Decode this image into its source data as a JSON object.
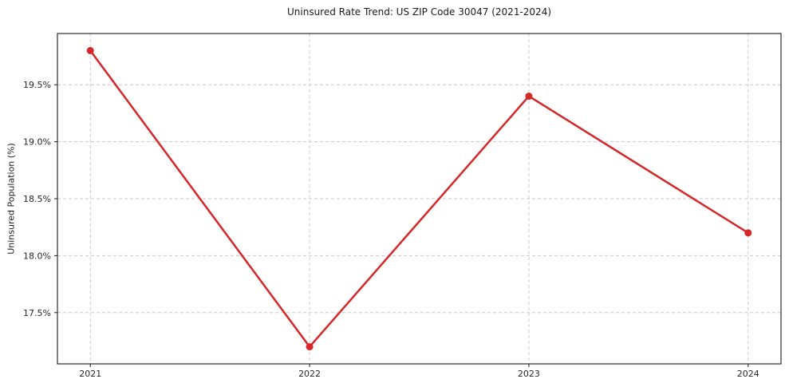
{
  "chart_data": {
    "type": "line",
    "title": "Uninsured Rate Trend: US ZIP Code 30047 (2021-2024)",
    "xlabel": "",
    "ylabel": "Uninsured Population (%)",
    "x": [
      2021,
      2022,
      2023,
      2024
    ],
    "values": [
      19.8,
      17.2,
      19.4,
      18.2
    ],
    "xticks": [
      2021,
      2022,
      2023,
      2024
    ],
    "xtick_labels": [
      "2021",
      "2022",
      "2023",
      "2024"
    ],
    "yticks": [
      17.5,
      18.0,
      18.5,
      19.0,
      19.5
    ],
    "ytick_labels": [
      "17.5%",
      "18.0%",
      "18.5%",
      "19.0%",
      "19.5%"
    ],
    "xlim": [
      2020.85,
      2024.15
    ],
    "ylim": [
      17.05,
      19.95
    ],
    "grid": true,
    "grid_style": "dashed",
    "legend_position": "none",
    "line_color": "#d62728",
    "marker": "circle",
    "marker_radius": 4.5,
    "line_width": 2.5,
    "grid_color": "#c9c9c9",
    "axis_color": "#1a1a1a",
    "tick_label_color": "#262626",
    "background": "#ffffff"
  }
}
